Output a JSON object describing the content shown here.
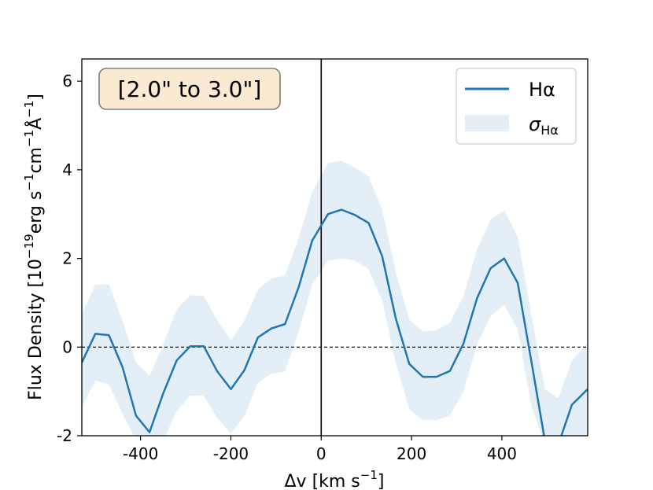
{
  "chart_data": {
    "type": "line",
    "annotation": "[2.0\" to 3.0\"]",
    "xlabel_main": "Δv [km s",
    "xlabel_sup": "−1",
    "xlabel_end": "]",
    "ylabel_main": "Flux Density [10",
    "ylabel_sup1": "−19",
    "ylabel_mid1": "erg s",
    "ylabel_sup2": "−1",
    "ylabel_mid2": "cm",
    "ylabel_sup3": "−1",
    "ylabel_mid3": "Å",
    "ylabel_sup4": "−1",
    "ylabel_end": "]",
    "xlim": [
      -530,
      590
    ],
    "ylim": [
      -2,
      6.5
    ],
    "xticks": [
      -400,
      -200,
      0,
      200,
      400
    ],
    "xtick_labels": [
      "-400",
      "-200",
      "0",
      "200",
      "400"
    ],
    "yticks": [
      -2,
      0,
      2,
      4,
      6
    ],
    "ytick_labels": [
      "-2",
      "0",
      "2",
      "4",
      "6"
    ],
    "hline_y": 0,
    "vline_x": 0,
    "legend_position": "top-right",
    "legend": {
      "line_label": "Hα",
      "band_label_main": "σ",
      "band_label_sub": "Hα"
    },
    "series": [
      {
        "name": "Hα",
        "color": "#1f77b4",
        "x": [
          -530,
          -500,
          -470,
          -440,
          -410,
          -380,
          -350,
          -320,
          -290,
          -260,
          -230,
          -200,
          -170,
          -140,
          -110,
          -80,
          -50,
          -20,
          15,
          45,
          75,
          105,
          135,
          165,
          195,
          225,
          255,
          285,
          315,
          345,
          375,
          405,
          435,
          465,
          495,
          525,
          555,
          590
        ],
        "y": [
          -0.35,
          0.3,
          0.27,
          -0.45,
          -1.55,
          -1.92,
          -1.05,
          -0.3,
          0.02,
          0.02,
          -0.55,
          -0.95,
          -0.52,
          0.22,
          0.42,
          0.52,
          1.35,
          2.4,
          3.0,
          3.1,
          2.98,
          2.8,
          2.05,
          0.65,
          -0.38,
          -0.67,
          -0.67,
          -0.54,
          0.08,
          1.1,
          1.78,
          2.0,
          1.45,
          -0.3,
          -2.1,
          -2.2,
          -1.3,
          -0.95
        ]
      }
    ],
    "band": {
      "name": "σ_Hα",
      "color": "#1f77b4",
      "opacity": 0.12,
      "lower": [
        -1.35,
        -0.75,
        -0.85,
        -1.5,
        -2.1,
        -2.2,
        -2.1,
        -1.45,
        -1.1,
        -1.1,
        -1.6,
        -1.95,
        -1.55,
        -0.8,
        -0.6,
        -0.55,
        0.35,
        1.4,
        1.95,
        2.0,
        1.95,
        1.75,
        1.05,
        -0.35,
        -1.4,
        -1.65,
        -1.65,
        -1.55,
        -1.0,
        0.05,
        0.7,
        0.95,
        0.4,
        -1.3,
        -2.2,
        -2.2,
        -2.2,
        -2.0
      ],
      "upper": [
        0.75,
        1.4,
        1.42,
        0.6,
        -0.35,
        -0.65,
        0.05,
        0.85,
        1.17,
        1.15,
        0.6,
        0.15,
        0.6,
        1.3,
        1.55,
        1.62,
        2.45,
        3.5,
        4.15,
        4.2,
        4.05,
        3.85,
        3.1,
        1.7,
        0.62,
        0.35,
        0.38,
        0.55,
        1.15,
        2.2,
        2.88,
        3.08,
        2.5,
        0.75,
        -0.95,
        -1.15,
        -0.3,
        0.1
      ]
    }
  }
}
